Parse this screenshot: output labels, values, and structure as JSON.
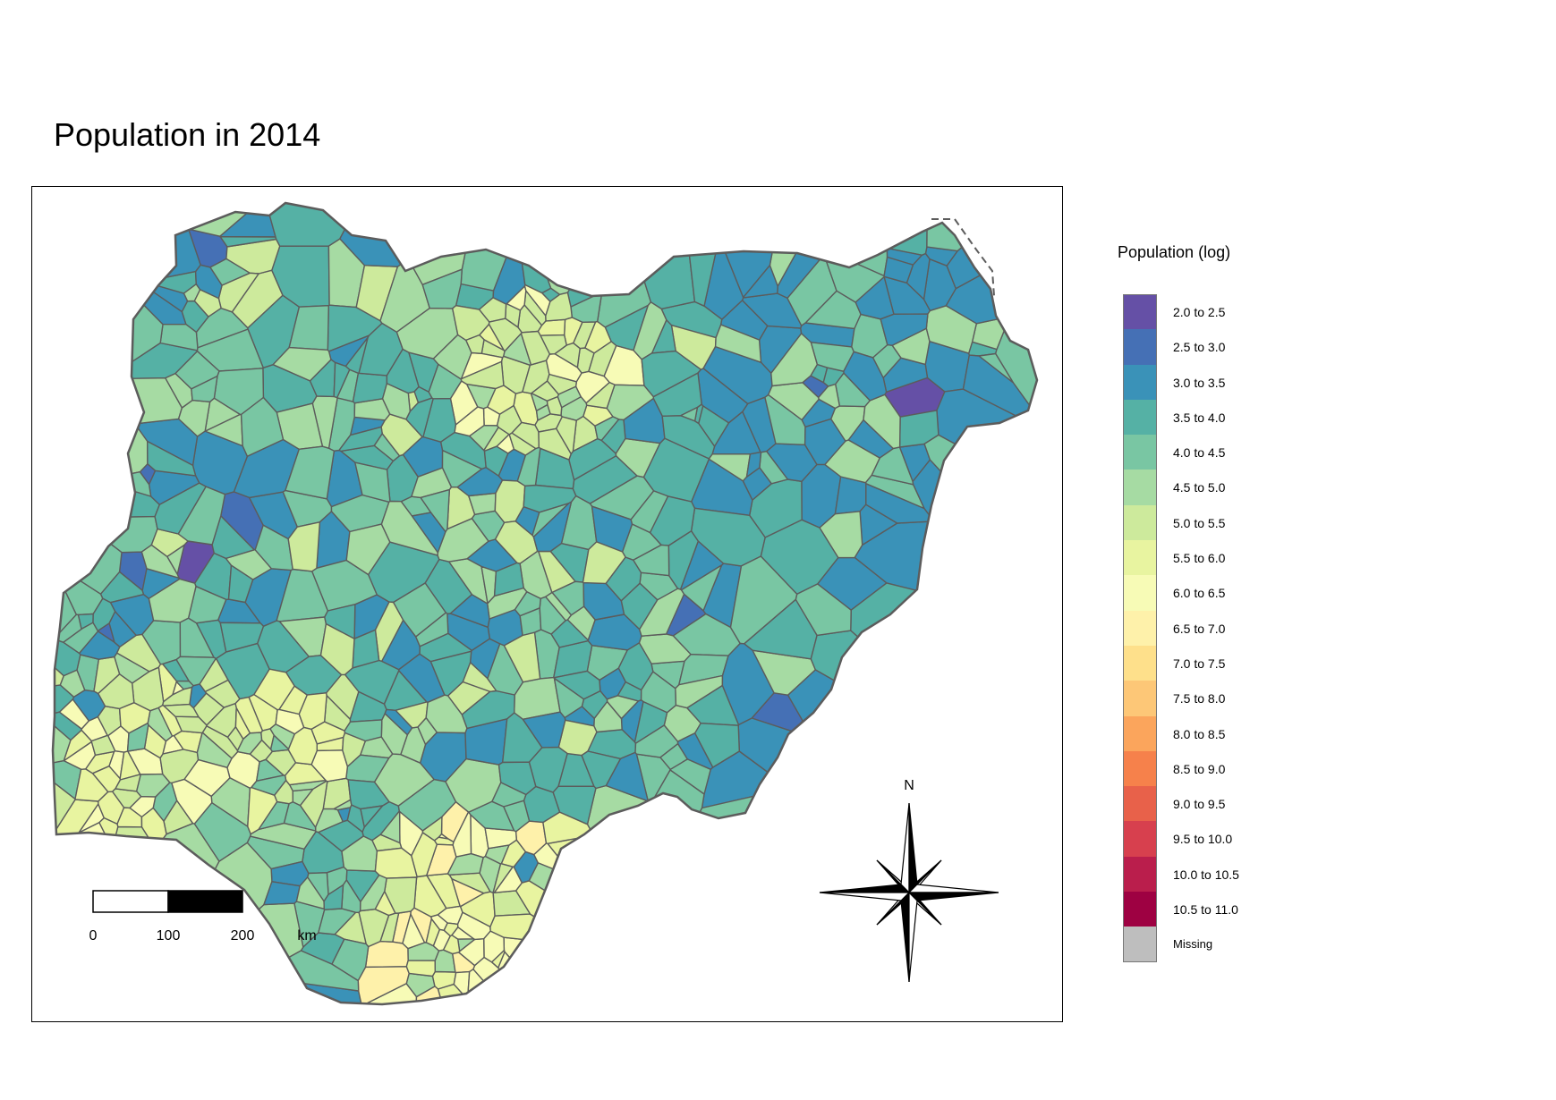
{
  "title": "Population in 2014",
  "legend": {
    "title": "Population (log)",
    "classes": [
      {
        "label": "2.0 to 2.5",
        "color": "#6550A6"
      },
      {
        "label": "2.5 to 3.0",
        "color": "#4570B5"
      },
      {
        "label": "3.0 to 3.5",
        "color": "#3A92B8"
      },
      {
        "label": "3.5 to 4.0",
        "color": "#55B1A5"
      },
      {
        "label": "4.0 to 4.5",
        "color": "#79C6A3"
      },
      {
        "label": "4.5 to 5.0",
        "color": "#A6DBA3"
      },
      {
        "label": "5.0 to 5.5",
        "color": "#CDEA9C"
      },
      {
        "label": "5.5 to 6.0",
        "color": "#E8F4A0"
      },
      {
        "label": "6.0 to 6.5",
        "color": "#F7FBB6"
      },
      {
        "label": "6.5 to 7.0",
        "color": "#FEF1AA"
      },
      {
        "label": "7.0 to 7.5",
        "color": "#FEE08B"
      },
      {
        "label": "7.5 to 8.0",
        "color": "#FDC777"
      },
      {
        "label": "8.0 to 8.5",
        "color": "#FBA55C"
      },
      {
        "label": "8.5 to 9.0",
        "color": "#F6814B"
      },
      {
        "label": "9.0 to 9.5",
        "color": "#E8614A"
      },
      {
        "label": "9.5 to 10.0",
        "color": "#D7404E"
      },
      {
        "label": "10.0 to 10.5",
        "color": "#BA1E4C"
      },
      {
        "label": "10.5 to 11.0",
        "color": "#9E0142"
      },
      {
        "label": "Missing",
        "color": "#BEBEBE"
      }
    ]
  },
  "scale_bar": {
    "ticks": [
      "0",
      "100",
      "200"
    ],
    "unit": "km"
  },
  "north_arrow": {
    "label": "N"
  },
  "colors": {
    "border": "#5C5C5C",
    "frame": "#000000"
  }
}
